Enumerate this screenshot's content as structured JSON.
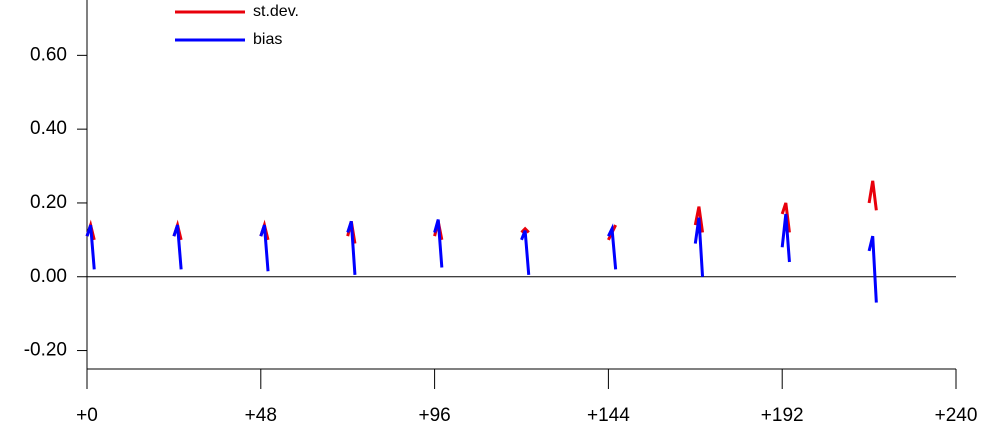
{
  "chart_data": {
    "type": "line",
    "x": [
      0,
      1,
      2,
      12,
      24,
      25,
      26,
      36,
      48,
      49,
      50,
      60,
      72,
      73,
      74,
      84,
      96,
      97,
      98,
      108,
      120,
      121,
      122,
      132,
      144,
      145,
      146,
      156,
      168,
      169,
      170,
      180,
      192,
      193,
      194,
      204,
      216,
      217,
      218
    ],
    "series": [
      {
        "name": "st.dev.",
        "color": "#e8000b",
        "values": [
          0.11,
          0.14,
          0.1,
          null,
          0.11,
          0.14,
          0.1,
          null,
          0.11,
          0.14,
          0.1,
          null,
          0.11,
          0.15,
          0.09,
          null,
          0.11,
          0.15,
          0.1,
          null,
          0.12,
          0.13,
          0.12,
          null,
          0.1,
          0.12,
          0.14,
          null,
          0.14,
          0.19,
          0.12,
          null,
          0.17,
          0.2,
          0.12,
          null,
          0.2,
          0.26,
          0.18
        ]
      },
      {
        "name": "bias",
        "color": "#0000ff",
        "values": [
          0.11,
          0.14,
          0.02,
          null,
          0.11,
          0.14,
          0.02,
          null,
          0.11,
          0.14,
          0.015,
          null,
          0.12,
          0.15,
          0.005,
          null,
          0.12,
          0.155,
          0.025,
          null,
          0.1,
          0.125,
          0.005,
          null,
          0.11,
          0.13,
          0.02,
          null,
          0.09,
          0.16,
          0.0,
          null,
          0.08,
          0.17,
          0.04,
          null,
          0.07,
          0.11,
          -0.07
        ]
      }
    ],
    "xlim": [
      0,
      240
    ],
    "xticks": [
      {
        "value": 0,
        "label": "+0"
      },
      {
        "value": 48,
        "label": "+48"
      },
      {
        "value": 96,
        "label": "+96"
      },
      {
        "value": 144,
        "label": "+144"
      },
      {
        "value": 192,
        "label": "+192"
      },
      {
        "value": 240,
        "label": "+240"
      }
    ],
    "ylim": [
      -0.25,
      0.75
    ],
    "yticks": [
      {
        "value": -0.2,
        "label": "-0.20"
      },
      {
        "value": 0,
        "label": "0.00"
      },
      {
        "value": 0.2,
        "label": "0.20"
      },
      {
        "value": 0.4,
        "label": "0.40"
      },
      {
        "value": 0.6,
        "label": "0.60"
      }
    ],
    "zero_line": true
  }
}
